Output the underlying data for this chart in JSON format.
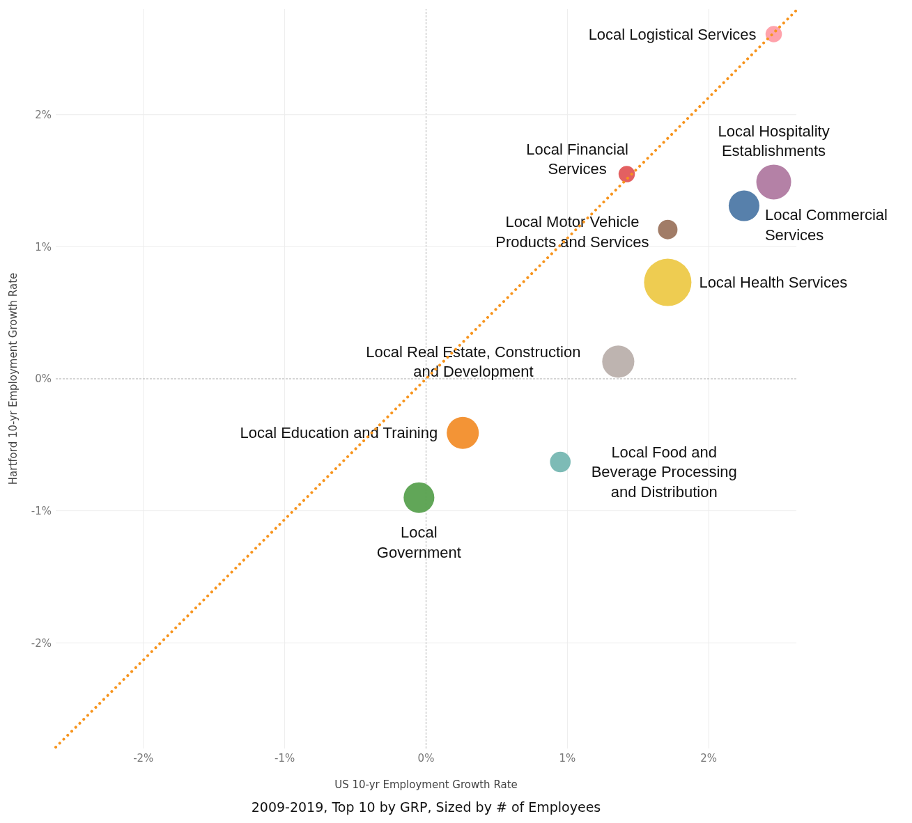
{
  "chart_data": {
    "type": "bubble",
    "xlabel": "US 10-yr Employment Growth Rate",
    "ylabel": "Hartford 10-yr Employment Growth Rate",
    "annotations": [
      "2009-2019, Top 10 by GRP, Sized by # of Employees"
    ],
    "xlim": [
      -2.62,
      2.62
    ],
    "ylim": [
      -2.8,
      2.8
    ],
    "xticks": [
      {
        "value": -2,
        "label": "-2%"
      },
      {
        "value": -1,
        "label": "-1%"
      },
      {
        "value": 0,
        "label": "0%"
      },
      {
        "value": 1,
        "label": "1%"
      },
      {
        "value": 2,
        "label": "2%"
      }
    ],
    "yticks": [
      {
        "value": -2,
        "label": "-2%"
      },
      {
        "value": -1,
        "label": "-1%"
      },
      {
        "value": 0,
        "label": "0%"
      },
      {
        "value": 1,
        "label": "1%"
      },
      {
        "value": 2,
        "label": "2%"
      }
    ],
    "grid": true,
    "series": [
      {
        "name": "Local Logistical Services",
        "color": "#ff9da7",
        "x": [
          2.46
        ],
        "values": [
          2.61
        ],
        "sizes": [
          0.12
        ]
      },
      {
        "name": "Local Hospitality\nEstablishments",
        "color": "#b07aa1",
        "x": [
          2.46
        ],
        "values": [
          1.49
        ],
        "sizes": [
          0.54
        ]
      },
      {
        "name": "Local Commercial\nServices",
        "color": "#4e79a7",
        "x": [
          2.25
        ],
        "values": [
          1.31
        ],
        "sizes": [
          0.42
        ]
      },
      {
        "name": "Local Financial\nServices",
        "color": "#e15759",
        "x": [
          1.42
        ],
        "values": [
          1.55
        ],
        "sizes": [
          0.12
        ]
      },
      {
        "name": "Local Motor Vehicle\nProducts and Services",
        "color": "#9c755f",
        "x": [
          1.71
        ],
        "values": [
          1.13
        ],
        "sizes": [
          0.17
        ]
      },
      {
        "name": "Local Health Services",
        "color": "#edc948",
        "x": [
          1.71
        ],
        "values": [
          0.73
        ],
        "sizes": [
          1
        ]
      },
      {
        "name": "Local Real Estate, Construction\nand Development",
        "color": "#bab0ac",
        "x": [
          1.36
        ],
        "values": [
          0.13
        ],
        "sizes": [
          0.46
        ]
      },
      {
        "name": "Local Education and Training",
        "color": "#f28e2b",
        "x": [
          0.26
        ],
        "values": [
          -0.41
        ],
        "sizes": [
          0.46
        ]
      },
      {
        "name": "Local Food and\nBeverage Processing\nand Distribution",
        "color": "#76b7b2",
        "x": [
          0.95
        ],
        "values": [
          -0.63
        ],
        "sizes": [
          0.19
        ]
      },
      {
        "name": "Local\nGovernment",
        "color": "#59a14f",
        "x": [
          -0.05
        ],
        "values": [
          -0.9
        ],
        "sizes": [
          0.42
        ]
      },
      {
        "type": "line",
        "color": "#f7941d",
        "line_style": "dotted",
        "marker": "none",
        "x": [
          -2.62,
          2.62
        ],
        "values": [
          -2.79,
          2.79
        ]
      }
    ]
  }
}
